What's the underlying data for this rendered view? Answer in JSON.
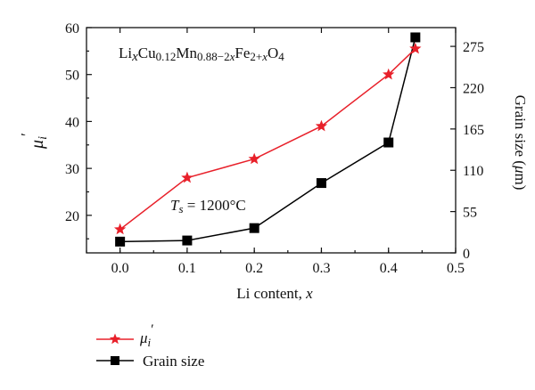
{
  "chart_data": {
    "type": "line",
    "xlabel_main": "Li content, ",
    "xlabel_var": "x",
    "ylabel_left": "μ",
    "ylabel_left_sub": "i",
    "ylabel_left_prime": "′",
    "ylabel_right": "Grain size (μm)",
    "xlim": [
      -0.05,
      0.5
    ],
    "x_ticks": [
      0.0,
      0.1,
      0.2,
      0.3,
      0.4,
      0.5
    ],
    "x_tick_labels": [
      "0.0",
      "0.1",
      "0.2",
      "0.3",
      "0.4",
      "0.5"
    ],
    "ylim_left": [
      12,
      60
    ],
    "y_left_ticks": [
      20,
      30,
      40,
      50,
      60
    ],
    "y_left_tick_labels": [
      "20",
      "30",
      "40",
      "50",
      "60"
    ],
    "ylim_right": [
      0,
      300
    ],
    "y_right_ticks": [
      0,
      55,
      110,
      165,
      220,
      275
    ],
    "y_right_tick_labels": [
      "0",
      "55",
      "110",
      "165",
      "220",
      "275"
    ],
    "series": [
      {
        "name": "μi′",
        "axis": "left",
        "color": "#e8202a",
        "marker": "star",
        "x": [
          0.0,
          0.1,
          0.2,
          0.3,
          0.4,
          0.44
        ],
        "y": [
          17,
          28,
          32,
          39,
          50,
          55.5
        ]
      },
      {
        "name": "Grain size",
        "axis": "right",
        "color": "#000000",
        "marker": "square",
        "x": [
          0.0,
          0.1,
          0.2,
          0.3,
          0.4,
          0.44
        ],
        "y": [
          15,
          16.5,
          33,
          93,
          147,
          287
        ]
      }
    ],
    "annotations": {
      "formula": "LixCu0.12Mn0.88−2xFe2+xO4",
      "temperature": "Ts = 1200°C"
    },
    "legend": {
      "placement": "bottom-left-outside",
      "entries": [
        "μi′",
        "Grain size"
      ]
    },
    "grid": false
  }
}
